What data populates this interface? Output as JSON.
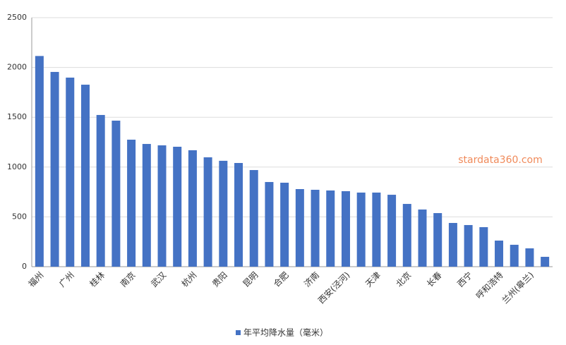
{
  "chart_data": {
    "type": "bar",
    "categories": [
      "福州",
      null,
      "广州",
      null,
      "桂林",
      null,
      "南京",
      null,
      "武汉",
      null,
      "杭州",
      null,
      "贵阳",
      null,
      "昆明",
      null,
      "合肥",
      null,
      "济南",
      null,
      "西安(泾河)",
      null,
      "天津",
      null,
      "北京",
      null,
      "长春",
      null,
      "西宁",
      null,
      "呼和浩特",
      null,
      "兰州(皋兰)",
      null
    ],
    "series": [
      {
        "name": "年平均降水量（毫米）",
        "color": "#4472c4",
        "values": [
          2115,
          1955,
          1898,
          1827,
          1523,
          1466,
          1275,
          1232,
          1218,
          1204,
          1169,
          1098,
          1063,
          1041,
          970,
          850,
          843,
          779,
          772,
          765,
          758,
          744,
          744,
          722,
          630,
          574,
          538,
          439,
          418,
          397,
          262,
          220,
          184,
          99
        ]
      }
    ],
    "ylim": [
      0,
      2500
    ],
    "yticks": [
      0,
      500,
      1000,
      1500,
      2000,
      2500
    ],
    "grid": true,
    "legend": "bottom",
    "watermark": "stardata360.com"
  }
}
